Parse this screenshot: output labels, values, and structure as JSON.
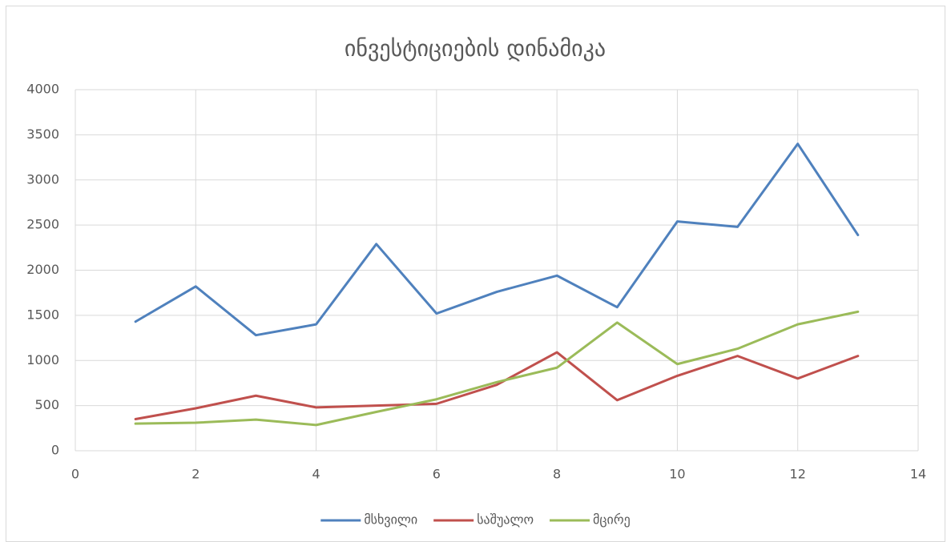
{
  "chart_data": {
    "type": "line",
    "title": "ინვესტიციების დინამიკა",
    "x": [
      1,
      2,
      3,
      4,
      5,
      6,
      7,
      8,
      9,
      10,
      11,
      12,
      13
    ],
    "series": [
      {
        "name": "მსხვილი",
        "color": "#4f81bd",
        "values": [
          1430,
          1820,
          1280,
          1400,
          2290,
          1520,
          1760,
          1940,
          1590,
          2540,
          2480,
          3400,
          2390
        ]
      },
      {
        "name": "საშუალო",
        "color": "#c0504d",
        "values": [
          350,
          470,
          610,
          480,
          500,
          520,
          730,
          1090,
          560,
          830,
          1050,
          800,
          1050
        ]
      },
      {
        "name": "მცირე",
        "color": "#9bbb59",
        "values": [
          300,
          310,
          345,
          285,
          430,
          570,
          760,
          920,
          1420,
          960,
          1130,
          1400,
          1540
        ]
      }
    ],
    "xlim": [
      0,
      14
    ],
    "xticks": [
      0,
      2,
      4,
      6,
      8,
      10,
      12,
      14
    ],
    "ylim": [
      0,
      4000
    ],
    "yticks": [
      0,
      500,
      1000,
      1500,
      2000,
      2500,
      3000,
      3500,
      4000
    ],
    "grid": true,
    "legend": "bottom"
  }
}
